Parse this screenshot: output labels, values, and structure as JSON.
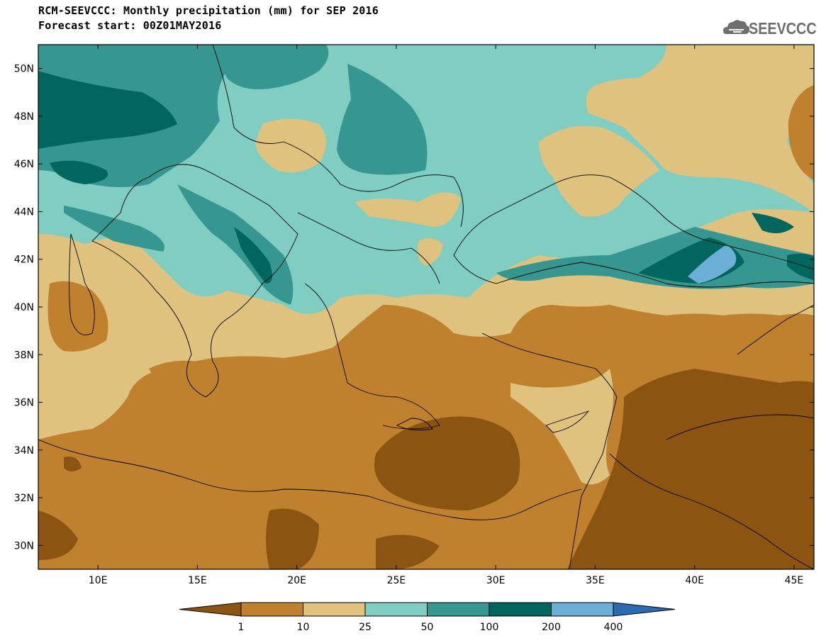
{
  "header": {
    "title_line1": "RCM-SEEVCCC: Monthly precipitation (mm) for SEP 2016",
    "title_line2": "Forecast start: 00Z01MAY2016"
  },
  "logo": {
    "text": "SEEVCCC",
    "icon": "cloud-icon",
    "color": "#6e6e6e"
  },
  "map": {
    "lon_range": [
      7,
      46
    ],
    "lat_range": [
      29,
      51
    ],
    "lat_ticks": [
      "50N",
      "48N",
      "46N",
      "44N",
      "42N",
      "40N",
      "38N",
      "36N",
      "34N",
      "32N",
      "30N"
    ],
    "lon_ticks": [
      "10E",
      "15E",
      "20E",
      "25E",
      "30E",
      "35E",
      "40E",
      "45E"
    ]
  },
  "colorbar": {
    "labels": [
      "1",
      "10",
      "25",
      "50",
      "100",
      "200",
      "400"
    ],
    "colors": [
      "#8b5511",
      "#bf812d",
      "#dfc27d",
      "#80cdc1",
      "#35978f",
      "#01665e",
      "#6baed6",
      "#2b6cb0"
    ]
  }
}
